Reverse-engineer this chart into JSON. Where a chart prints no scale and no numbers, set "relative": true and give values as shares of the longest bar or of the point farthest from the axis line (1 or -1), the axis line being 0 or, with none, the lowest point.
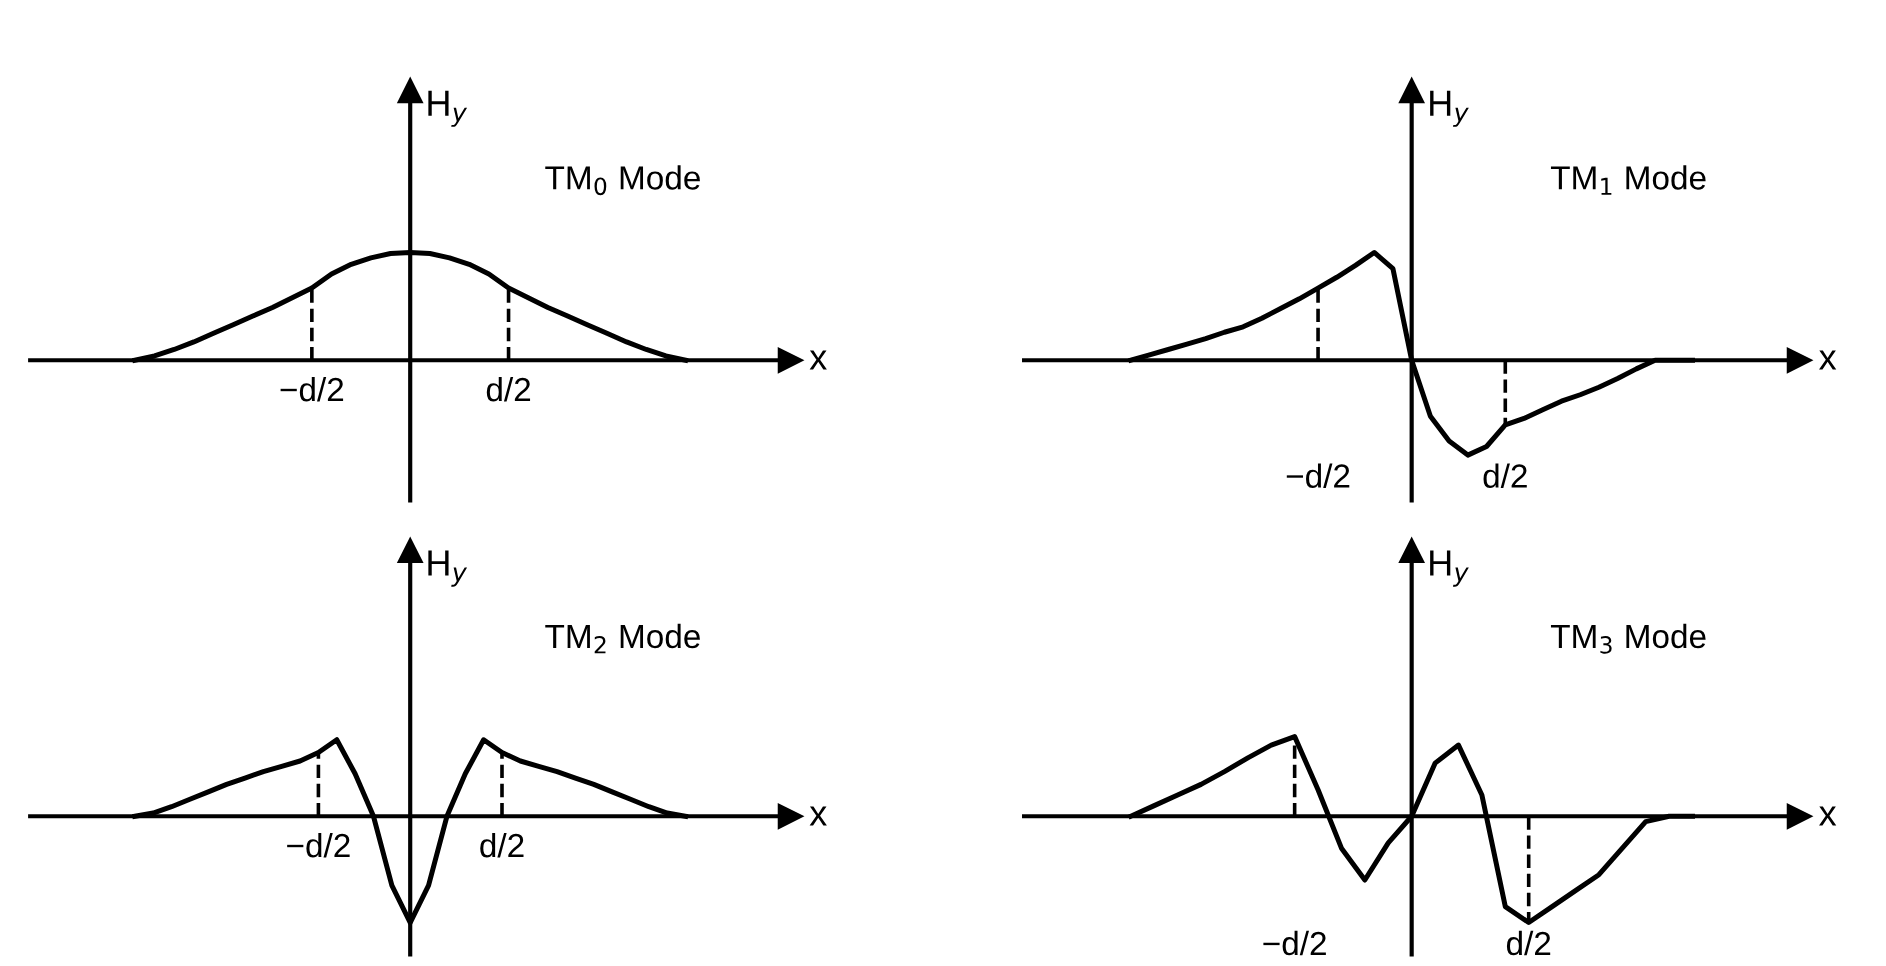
{
  "chart_data": [
    {
      "type": "line",
      "title": "TM$_{0}$ Mode",
      "xlabel": "x",
      "ylabel": "H$_{y}$",
      "relative": true,
      "ref_lines": [
        {
          "axis": "x",
          "value": "−d/2",
          "line_style": "dashed"
        },
        {
          "axis": "x",
          "value": "d/2",
          "line_style": "dashed"
        }
      ],
      "categories": [
        null,
        null,
        null,
        null,
        null,
        null,
        null,
        null,
        null,
        "−d/2",
        null,
        null,
        null,
        null,
        null,
        null,
        null,
        null,
        null,
        "d/2",
        null,
        null,
        null,
        null,
        null,
        null,
        null,
        null,
        null
      ],
      "series": [
        {
          "color": "#000000",
          "values": [
            0,
            0.04,
            0.1,
            0.17,
            0.25,
            0.33,
            0.41,
            0.49,
            0.58,
            0.67,
            0.8,
            0.89,
            0.95,
            0.99,
            1,
            0.99,
            0.95,
            0.89,
            0.8,
            0.67,
            0.58,
            0.49,
            0.41,
            0.33,
            0.25,
            0.17,
            0.1,
            0.04,
            0
          ]
        }
      ]
    },
    {
      "type": "line",
      "title": "TM$_{1}$ Mode",
      "xlabel": "x",
      "ylabel": "H$_{y}$",
      "relative": true,
      "ref_lines": [
        {
          "axis": "x",
          "value": "−d/2",
          "line_style": "dashed"
        },
        {
          "axis": "x",
          "value": "d/2",
          "line_style": "dashed"
        }
      ],
      "categories": [
        null,
        null,
        null,
        null,
        null,
        null,
        null,
        null,
        null,
        null,
        "−d/2",
        null,
        null,
        null,
        null,
        null,
        null,
        null,
        null,
        null,
        "d/2",
        null,
        null,
        null,
        null,
        null,
        null,
        null,
        null,
        null,
        null
      ],
      "series": [
        {
          "color": "#000000",
          "values": [
            0,
            0.05,
            0.1,
            0.15,
            0.2,
            0.26,
            0.31,
            0.39,
            0.48,
            0.57,
            0.67,
            0.77,
            0.88,
            1.0,
            0.85,
            0,
            -0.52,
            -0.75,
            -0.88,
            -0.8,
            -0.6,
            -0.54,
            -0.46,
            -0.38,
            -0.32,
            -0.25,
            -0.17,
            -0.08,
            0,
            0,
            0
          ]
        }
      ]
    },
    {
      "type": "line",
      "title": "TM$_{2}$ Mode",
      "xlabel": "x",
      "ylabel": "H$_{y}$",
      "relative": true,
      "ref_lines": [
        {
          "axis": "x",
          "value": "−d/2",
          "line_style": "dashed"
        },
        {
          "axis": "x",
          "value": "d/2",
          "line_style": "dashed"
        }
      ],
      "categories": [
        null,
        null,
        null,
        null,
        null,
        null,
        null,
        null,
        null,
        null,
        "−d/2",
        null,
        null,
        null,
        null,
        null,
        null,
        null,
        null,
        null,
        "d/2",
        null,
        null,
        null,
        null,
        null,
        null,
        null,
        null,
        null,
        null
      ],
      "series": [
        {
          "color": "#000000",
          "values": [
            0,
            0.03,
            0.09,
            0.16,
            0.23,
            0.3,
            0.36,
            0.42,
            0.47,
            0.52,
            0.6,
            0.72,
            0.4,
            0,
            -0.65,
            -1,
            -0.65,
            0,
            0.4,
            0.72,
            0.6,
            0.52,
            0.47,
            0.42,
            0.36,
            0.3,
            0.23,
            0.16,
            0.09,
            0.03,
            0
          ]
        }
      ]
    },
    {
      "type": "line",
      "title": "TM$_{3}$ Mode",
      "xlabel": "x",
      "ylabel": "H$_{y}$",
      "relative": true,
      "ref_lines": [
        {
          "axis": "x",
          "value": "−d/2",
          "line_style": "dashed"
        },
        {
          "axis": "x",
          "value": "d/2",
          "line_style": "dashed"
        }
      ],
      "categories": [
        null,
        null,
        null,
        null,
        null,
        null,
        null,
        "−d/2",
        null,
        null,
        null,
        null,
        null,
        null,
        null,
        null,
        null,
        "d/2",
        null,
        null,
        null,
        null,
        null,
        null,
        null
      ],
      "series": [
        {
          "color": "#000000",
          "values": [
            0,
            0.1,
            0.2,
            0.3,
            0.42,
            0.55,
            0.67,
            0.75,
            0.25,
            -0.3,
            -0.6,
            -0.25,
            0,
            0.5,
            0.67,
            0.2,
            -0.85,
            -1,
            -0.85,
            -0.7,
            -0.55,
            -0.3,
            -0.05,
            0,
            0
          ]
        }
      ]
    }
  ]
}
